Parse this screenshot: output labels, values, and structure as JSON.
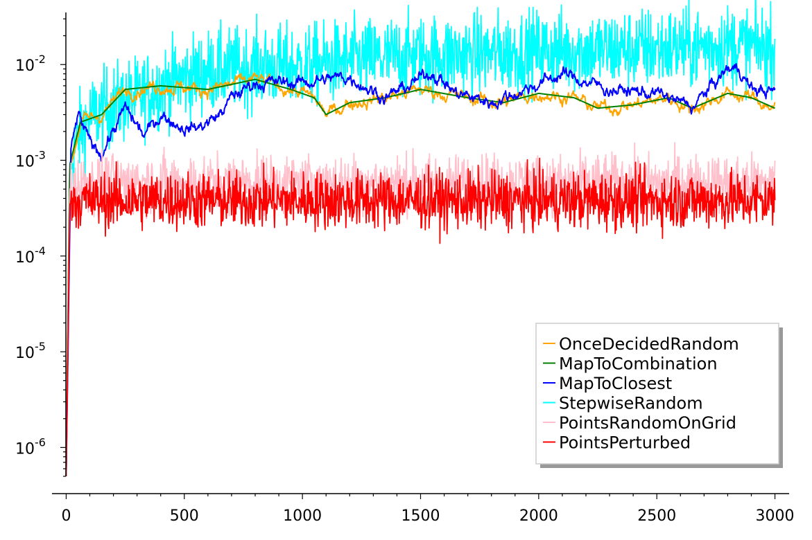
{
  "chart_data": {
    "type": "line",
    "title": "",
    "xlabel": "",
    "ylabel": "",
    "x_range": [
      0,
      3000
    ],
    "xlim": [
      -60,
      3060
    ],
    "yscale": "log",
    "ylim": [
      5e-07,
      0.035
    ],
    "grid": false,
    "legend_position": "lower-right",
    "x_ticks": [
      {
        "value": 0,
        "label": "0"
      },
      {
        "value": 500,
        "label": "500"
      },
      {
        "value": 1000,
        "label": "1000"
      },
      {
        "value": 1500,
        "label": "1500"
      },
      {
        "value": 2000,
        "label": "2000"
      },
      {
        "value": 2500,
        "label": "2500"
      },
      {
        "value": 3000,
        "label": "3000"
      }
    ],
    "y_ticks": [
      {
        "value": 1e-06,
        "base": "10",
        "exp": "-6"
      },
      {
        "value": 1e-05,
        "base": "10",
        "exp": "-5"
      },
      {
        "value": 0.0001,
        "base": "10",
        "exp": "-4"
      },
      {
        "value": 0.001,
        "base": "10",
        "exp": "-3"
      },
      {
        "value": 0.01,
        "base": "10",
        "exp": "-2"
      }
    ],
    "series": [
      {
        "name": "OnceDecidedRandom",
        "color": "#ffa500",
        "noise": 0.05,
        "smooth": true,
        "points": [
          [
            0,
            5e-07
          ],
          [
            15,
            0.0008
          ],
          [
            60,
            0.0025
          ],
          [
            150,
            0.003
          ],
          [
            250,
            0.0055
          ],
          [
            400,
            0.006
          ],
          [
            600,
            0.0055
          ],
          [
            800,
            0.007
          ],
          [
            950,
            0.0055
          ],
          [
            1050,
            0.0045
          ],
          [
            1100,
            0.003
          ],
          [
            1200,
            0.004
          ],
          [
            1350,
            0.0045
          ],
          [
            1500,
            0.0055
          ],
          [
            1700,
            0.0045
          ],
          [
            1850,
            0.004
          ],
          [
            2000,
            0.005
          ],
          [
            2150,
            0.0045
          ],
          [
            2250,
            0.0035
          ],
          [
            2400,
            0.0038
          ],
          [
            2550,
            0.0045
          ],
          [
            2650,
            0.0035
          ],
          [
            2800,
            0.005
          ],
          [
            2900,
            0.0045
          ],
          [
            3000,
            0.0035
          ]
        ]
      },
      {
        "name": "MapToCombination",
        "color": "#008000",
        "noise": 0.0,
        "smooth": true,
        "points": [
          [
            0,
            5e-07
          ],
          [
            15,
            0.0009
          ],
          [
            60,
            0.0025
          ],
          [
            150,
            0.003
          ],
          [
            250,
            0.0055
          ],
          [
            400,
            0.006
          ],
          [
            600,
            0.0055
          ],
          [
            800,
            0.007
          ],
          [
            950,
            0.0055
          ],
          [
            1050,
            0.0045
          ],
          [
            1100,
            0.003
          ],
          [
            1200,
            0.004
          ],
          [
            1350,
            0.0045
          ],
          [
            1500,
            0.0055
          ],
          [
            1700,
            0.0045
          ],
          [
            1850,
            0.004
          ],
          [
            2000,
            0.005
          ],
          [
            2150,
            0.0045
          ],
          [
            2250,
            0.0035
          ],
          [
            2400,
            0.0038
          ],
          [
            2550,
            0.0045
          ],
          [
            2650,
            0.0035
          ],
          [
            2800,
            0.005
          ],
          [
            2900,
            0.0045
          ],
          [
            3000,
            0.0035
          ]
        ]
      },
      {
        "name": "MapToClosest",
        "color": "#0000ff",
        "noise": 0.05,
        "smooth": true,
        "points": [
          [
            0,
            5e-07
          ],
          [
            20,
            0.0012
          ],
          [
            50,
            0.003
          ],
          [
            100,
            0.0015
          ],
          [
            150,
            0.0012
          ],
          [
            250,
            0.0035
          ],
          [
            330,
            0.0018
          ],
          [
            400,
            0.003
          ],
          [
            500,
            0.0022
          ],
          [
            560,
            0.0022
          ],
          [
            650,
            0.003
          ],
          [
            700,
            0.0045
          ],
          [
            800,
            0.0065
          ],
          [
            900,
            0.0065
          ],
          [
            1000,
            0.0065
          ],
          [
            1100,
            0.007
          ],
          [
            1200,
            0.0075
          ],
          [
            1350,
            0.0045
          ],
          [
            1450,
            0.006
          ],
          [
            1550,
            0.0085
          ],
          [
            1650,
            0.005
          ],
          [
            1800,
            0.004
          ],
          [
            1900,
            0.005
          ],
          [
            2100,
            0.008
          ],
          [
            2300,
            0.0055
          ],
          [
            2500,
            0.005
          ],
          [
            2650,
            0.0036
          ],
          [
            2800,
            0.009
          ],
          [
            2850,
            0.009
          ],
          [
            2900,
            0.0055
          ],
          [
            3000,
            0.0052
          ]
        ]
      },
      {
        "name": "StepwiseRandom",
        "color": "#00ffff",
        "noise": 0.23,
        "smooth": false,
        "points": [
          [
            0,
            5e-07
          ],
          [
            15,
            0.0008
          ],
          [
            50,
            0.0018
          ],
          [
            100,
            0.0028
          ],
          [
            200,
            0.0038
          ],
          [
            300,
            0.0045
          ],
          [
            400,
            0.006
          ],
          [
            500,
            0.0072
          ],
          [
            600,
            0.0085
          ],
          [
            700,
            0.009
          ],
          [
            800,
            0.0095
          ],
          [
            1000,
            0.0095
          ],
          [
            1200,
            0.011
          ],
          [
            1400,
            0.012
          ],
          [
            1600,
            0.0125
          ],
          [
            1800,
            0.013
          ],
          [
            2000,
            0.014
          ],
          [
            2200,
            0.014
          ],
          [
            2400,
            0.0145
          ],
          [
            2600,
            0.015
          ],
          [
            2800,
            0.016
          ],
          [
            3000,
            0.015
          ]
        ]
      },
      {
        "name": "PointsRandomOnGrid",
        "color": "#ffc0cb",
        "noise": 0.16,
        "smooth": false,
        "points": [
          [
            0,
            5e-07
          ],
          [
            15,
            0.0005
          ],
          [
            40,
            0.00058
          ],
          [
            3000,
            0.00058
          ]
        ]
      },
      {
        "name": "PointsPerturbed",
        "color": "#ff0000",
        "noise": 0.16,
        "smooth": false,
        "points": [
          [
            0,
            5e-07
          ],
          [
            15,
            0.00035
          ],
          [
            40,
            0.00038
          ],
          [
            3000,
            0.00038
          ]
        ]
      }
    ]
  }
}
